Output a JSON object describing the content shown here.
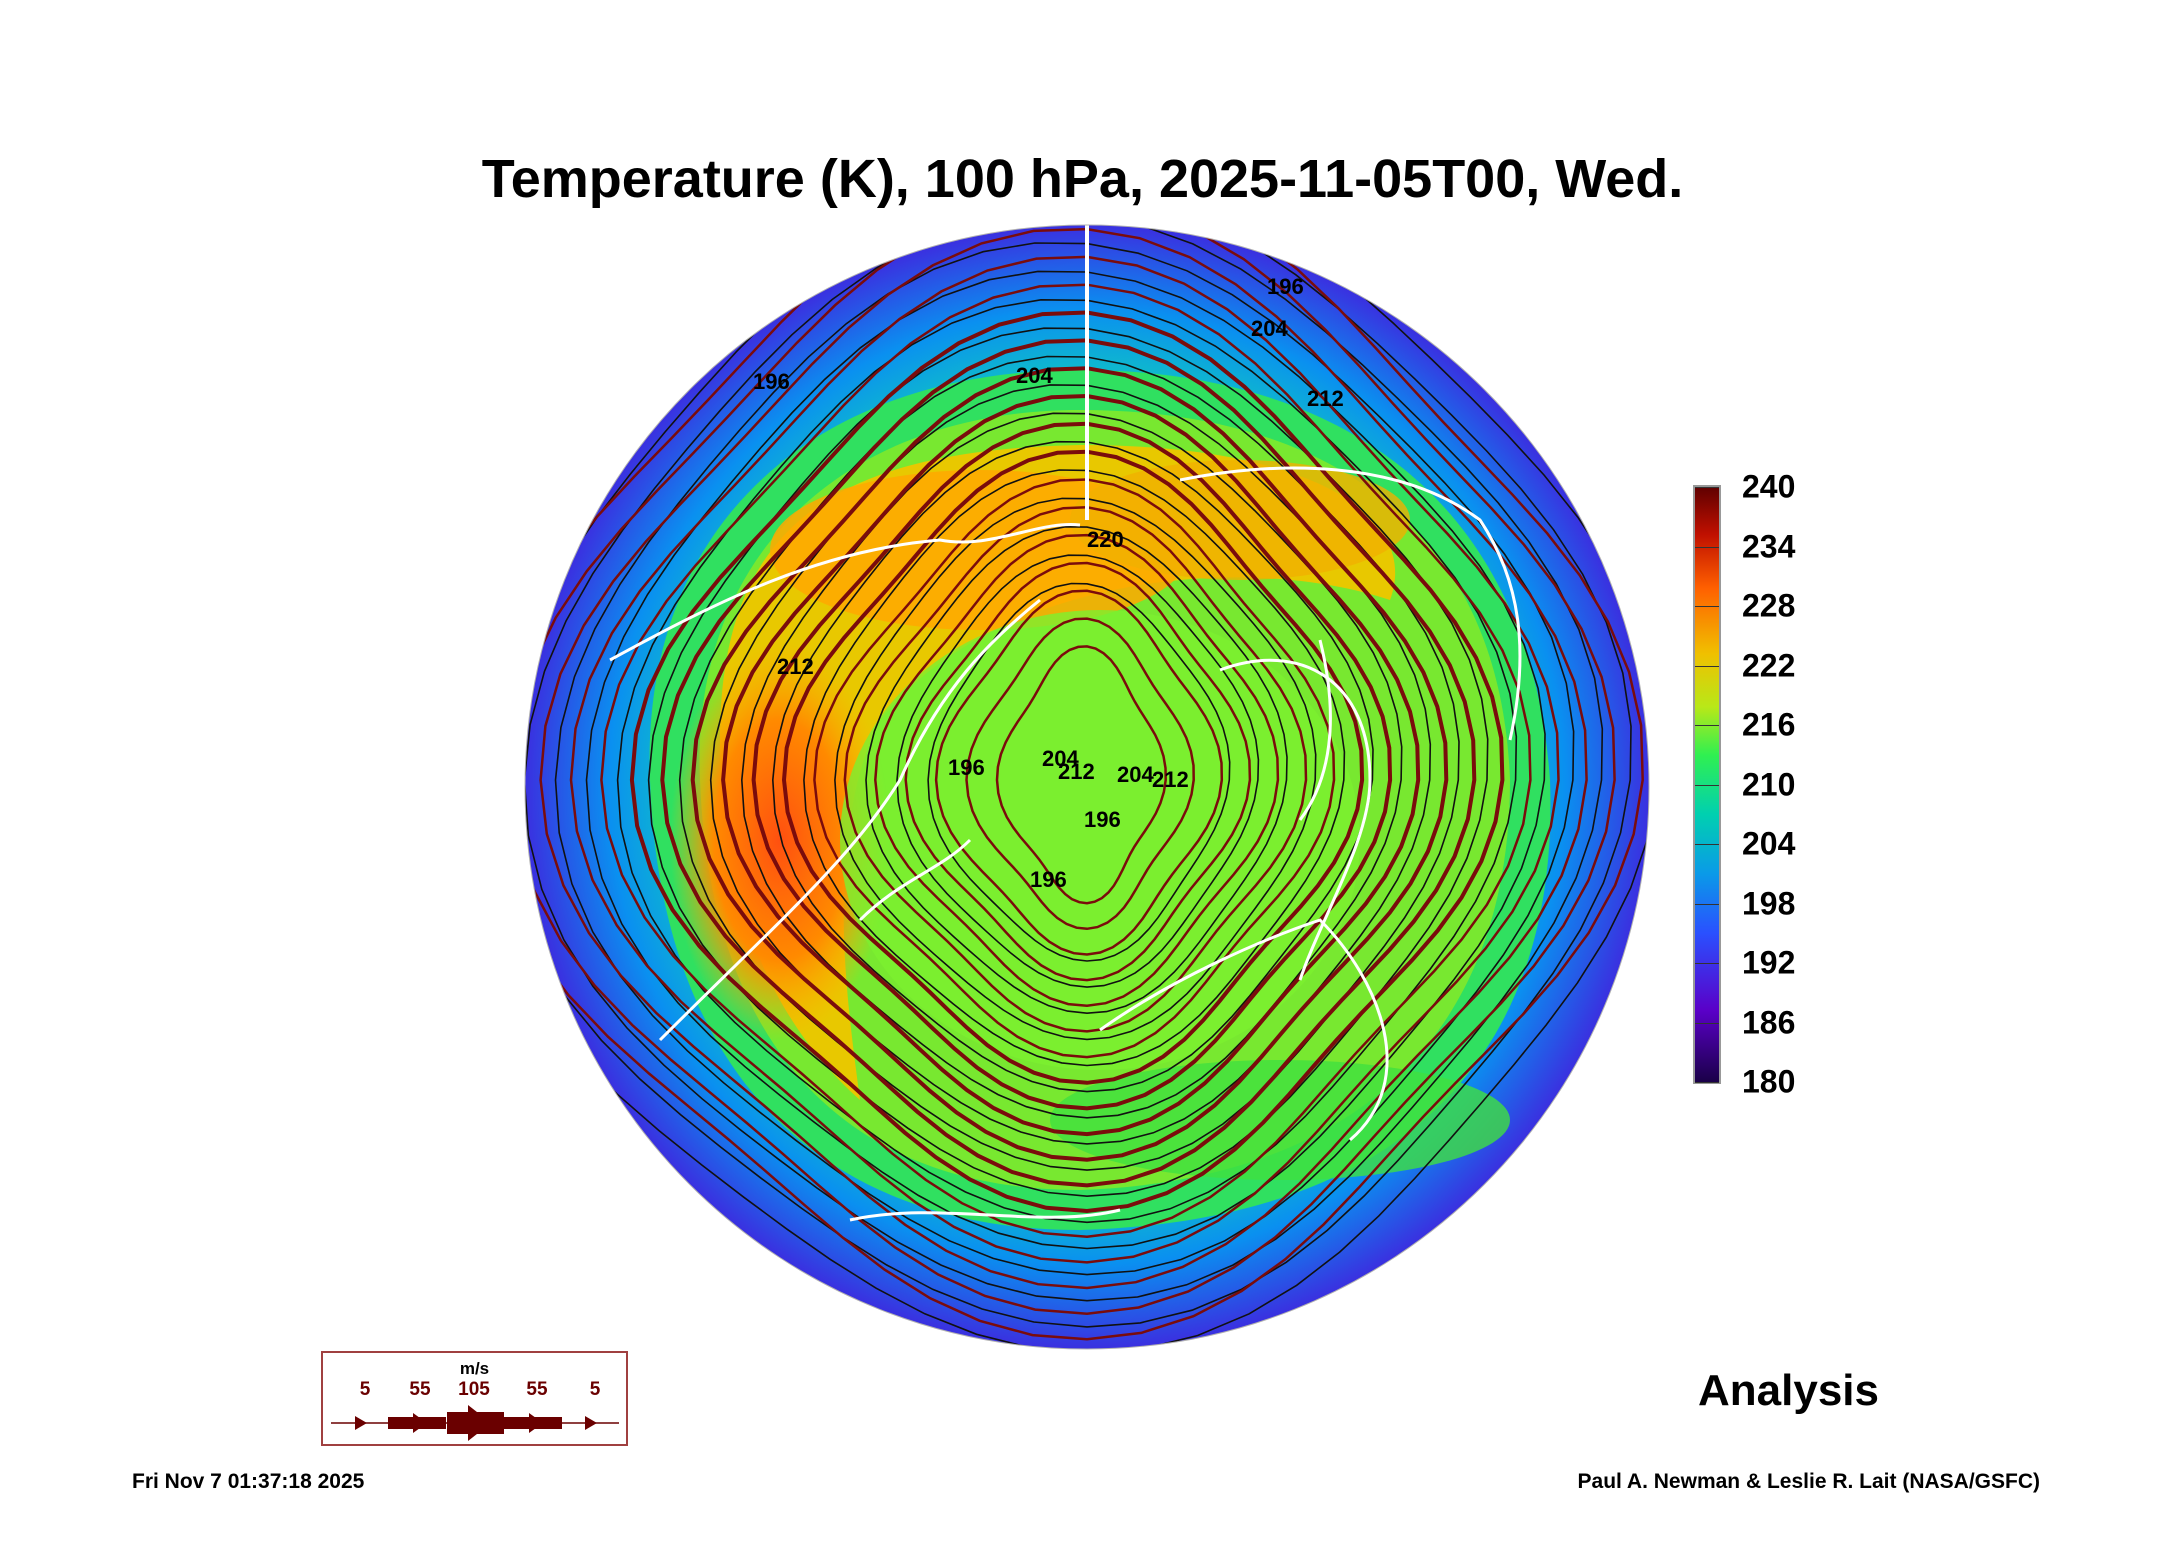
{
  "title": "Temperature (K), 100 hPa, 2025-11-05T00, Wed.",
  "map": {
    "projection": "north-polar-stereographic",
    "contour_labels": [
      "196",
      "204",
      "212",
      "196",
      "204",
      "212",
      "220",
      "196",
      "204",
      "212",
      "196",
      "196",
      "204",
      "212"
    ]
  },
  "colorbar": {
    "unit": "K",
    "ticks": [
      "240",
      "234",
      "228",
      "222",
      "216",
      "210",
      "204",
      "198",
      "192",
      "186",
      "180"
    ],
    "range": [
      180,
      240
    ]
  },
  "wind_legend": {
    "unit": "m/s",
    "speeds": [
      "5",
      "55",
      "105",
      "55",
      "5"
    ],
    "color": "#6a0000"
  },
  "label": "Analysis",
  "footer": {
    "timestamp": "Fri Nov  7 01:37:18 2025",
    "credit": "Paul A. Newman & Leslie R. Lait (NASA/GSFC)"
  }
}
